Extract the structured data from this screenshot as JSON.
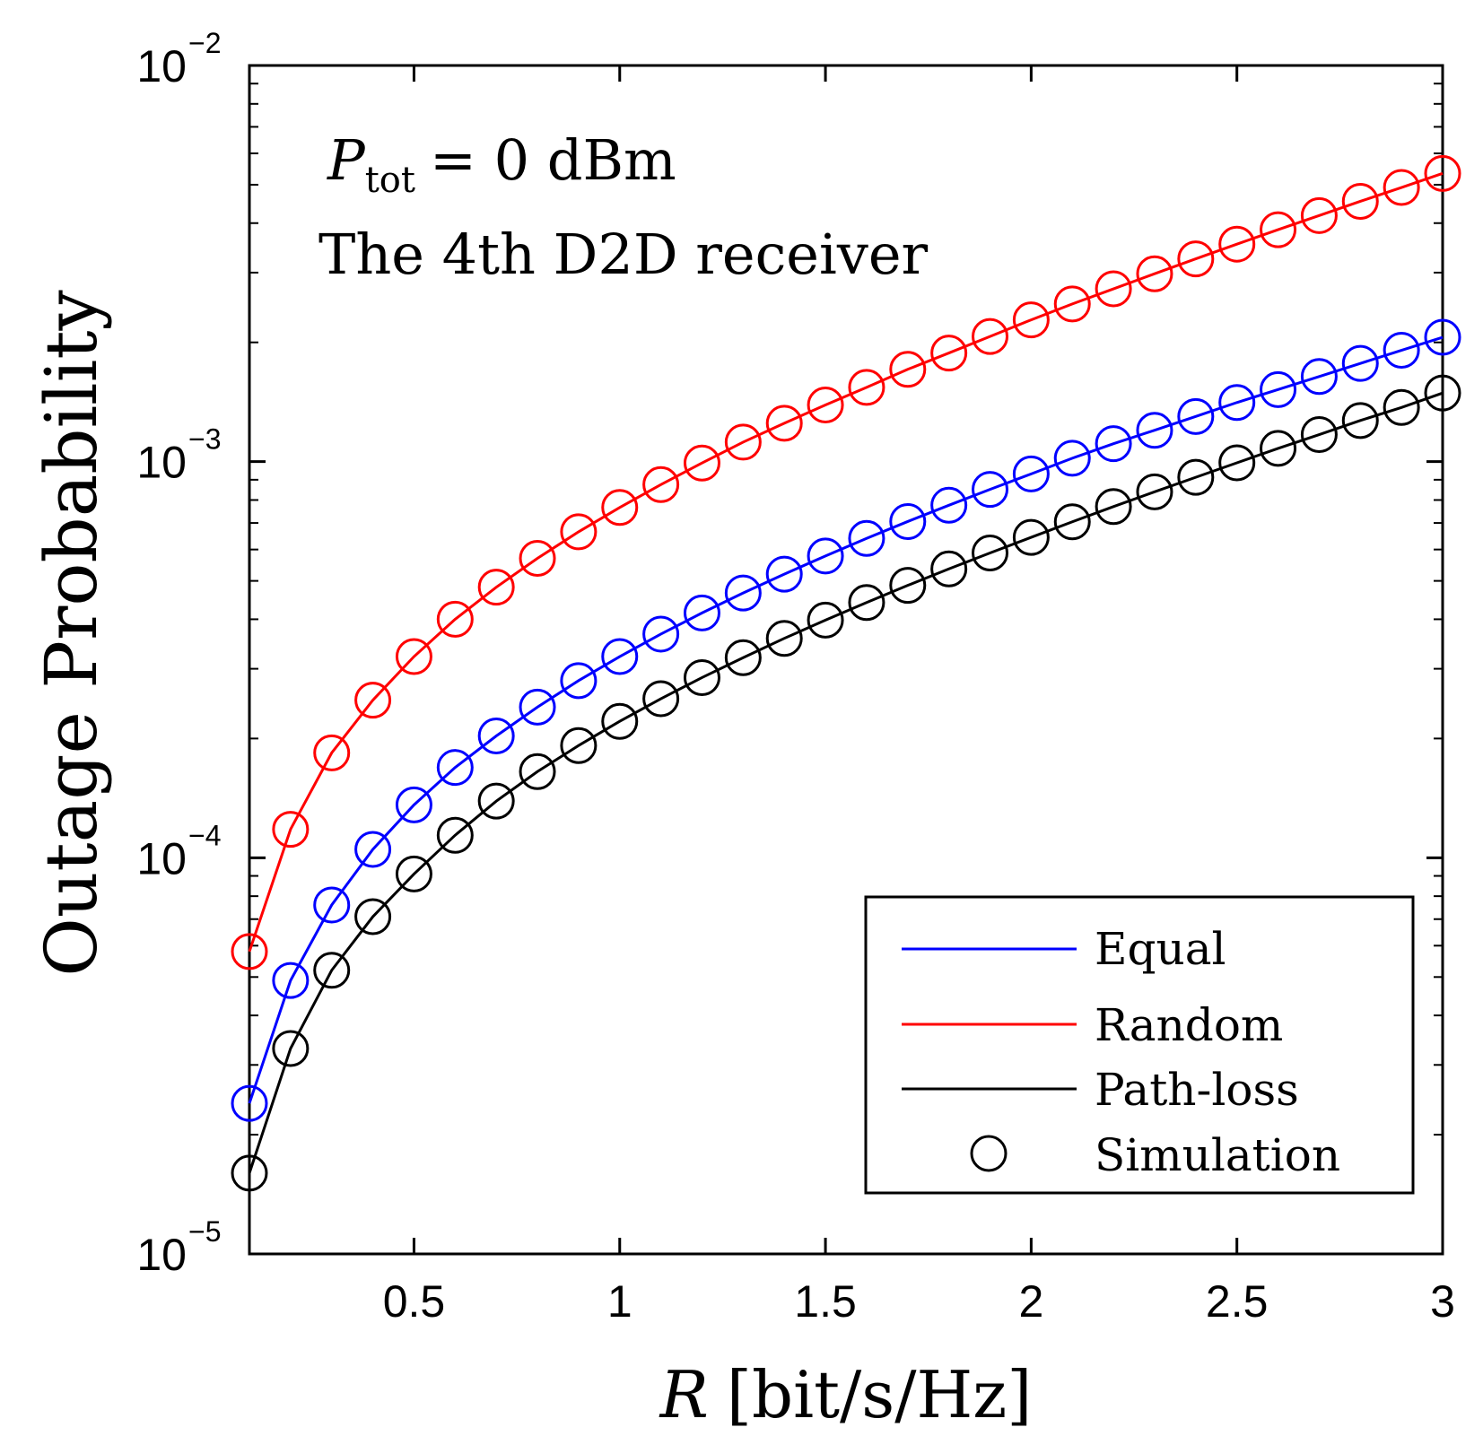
{
  "chart_data": {
    "type": "line",
    "title": "",
    "xlabel_var": "R",
    "xlabel_unit": "[bit/s/Hz]",
    "ylabel": "Outage Probability",
    "xscale": "linear",
    "yscale": "log",
    "xlim": [
      0.1,
      3.0
    ],
    "ylim": [
      1e-05,
      0.01
    ],
    "grid": false,
    "x_ticks": [
      {
        "value": 0.5,
        "label": "0.5"
      },
      {
        "value": 1.0,
        "label": "1"
      },
      {
        "value": 1.5,
        "label": "1.5"
      },
      {
        "value": 2.0,
        "label": "2"
      },
      {
        "value": 2.5,
        "label": "2.5"
      },
      {
        "value": 3.0,
        "label": "3"
      }
    ],
    "y_ticks": [
      {
        "value": 0.01,
        "base": "10",
        "exp": "−2"
      },
      {
        "value": 0.001,
        "base": "10",
        "exp": "−3"
      },
      {
        "value": 0.0001,
        "base": "10",
        "exp": "−4"
      },
      {
        "value": 1e-05,
        "base": "10",
        "exp": "−5"
      }
    ],
    "annotations": {
      "power_var": "P",
      "power_sub": "tot",
      "power_value": "= 0 dBm",
      "receiver": "The 4th D2D receiver"
    },
    "legend": {
      "position": "bottom-right",
      "entries": [
        {
          "label": "Equal",
          "marker": "line",
          "color": "#0000ff"
        },
        {
          "label": "Random",
          "marker": "line",
          "color": "#ff0000"
        },
        {
          "label": "Path-loss",
          "marker": "line",
          "color": "#000000"
        },
        {
          "label": "Simulation",
          "marker": "circle",
          "color": "#000000"
        }
      ]
    },
    "x": [
      0.1,
      0.2,
      0.3,
      0.4,
      0.5,
      0.6,
      0.7,
      0.8,
      0.9,
      1.0,
      1.1,
      1.2,
      1.3,
      1.4,
      1.5,
      1.6,
      1.7,
      1.8,
      1.9,
      2.0,
      2.1,
      2.2,
      2.3,
      2.4,
      2.5,
      2.6,
      2.7,
      2.8,
      2.9,
      3.0
    ],
    "series": [
      {
        "name": "Equal",
        "color": "#0000ff",
        "values": [
          2.4e-05,
          4.9e-05,
          7.6e-05,
          0.000105,
          0.000136,
          0.000169,
          0.000203,
          0.00024,
          0.00028,
          0.000322,
          0.000367,
          0.000415,
          0.000466,
          0.00052,
          0.000578,
          0.00064,
          0.000706,
          0.000776,
          0.000851,
          0.000931,
          0.00102,
          0.00111,
          0.0012,
          0.0013,
          0.00141,
          0.00152,
          0.00164,
          0.00177,
          0.00191,
          0.00206
        ]
      },
      {
        "name": "Random",
        "color": "#ff0000",
        "values": [
          5.8e-05,
          0.000118,
          0.000184,
          0.00025,
          0.000322,
          0.0004,
          0.000482,
          0.00057,
          0.000665,
          0.000766,
          0.000875,
          0.000992,
          0.00112,
          0.00125,
          0.00139,
          0.00154,
          0.00171,
          0.00188,
          0.00207,
          0.00228,
          0.0025,
          0.00273,
          0.00298,
          0.00325,
          0.00354,
          0.00385,
          0.00418,
          0.00454,
          0.00492,
          0.00534
        ]
      },
      {
        "name": "Path-loss",
        "color": "#000000",
        "values": [
          1.6e-05,
          3.3e-05,
          5.2e-05,
          7.1e-05,
          9.1e-05,
          0.000114,
          0.000139,
          0.000165,
          0.000192,
          0.000221,
          0.000252,
          0.000285,
          0.00032,
          0.000358,
          0.000398,
          0.000441,
          0.000487,
          0.000536,
          0.000588,
          0.000644,
          0.000705,
          0.00077,
          0.000839,
          0.000913,
          0.000993,
          0.00108,
          0.00117,
          0.00127,
          0.00137,
          0.00149
        ]
      }
    ]
  }
}
